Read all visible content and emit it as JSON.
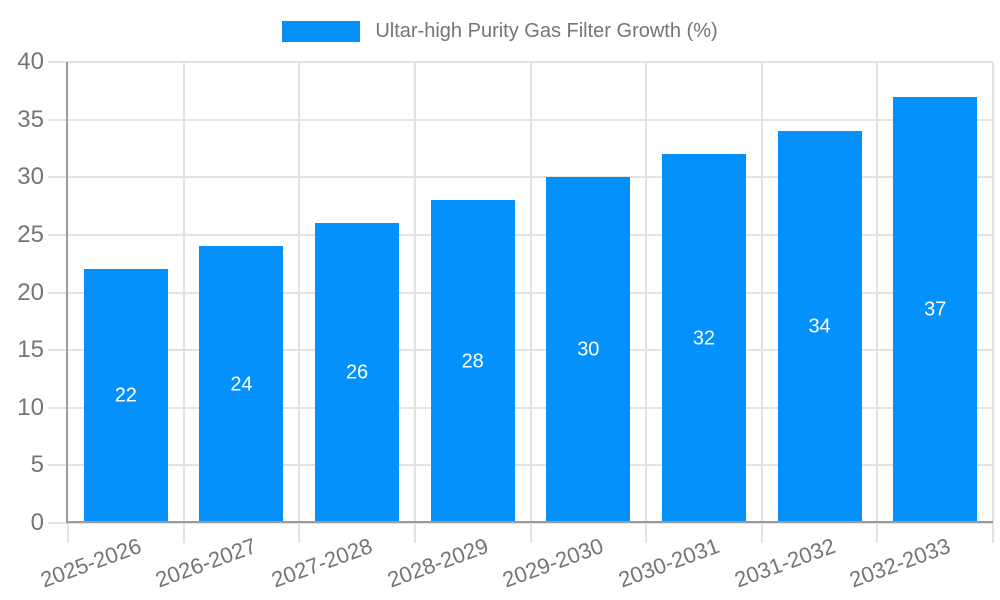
{
  "legend": {
    "label": "Ultar-high Purity Gas Filter Growth (%)",
    "swatch_color": "#0591fb"
  },
  "chart_data": {
    "type": "bar",
    "title": "",
    "series_name": "Ultar-high Purity Gas Filter Growth (%)",
    "categories": [
      "2025-2026",
      "2026-2027",
      "2027-2028",
      "2028-2029",
      "2029-2030",
      "2030-2031",
      "2031-2032",
      "2032-2033"
    ],
    "values": [
      22,
      24,
      26,
      28,
      30,
      32,
      34,
      37
    ],
    "value_labels": [
      "22",
      "24",
      "26",
      "28",
      "30",
      "32",
      "34",
      "37"
    ],
    "value_labels_position": "inside-center",
    "xlabel": "",
    "ylabel": "",
    "ylim": [
      0,
      40
    ],
    "ytick_step": 5,
    "yticks": [
      "0",
      "5",
      "10",
      "15",
      "20",
      "25",
      "30",
      "35",
      "40"
    ],
    "grid": true,
    "legend_position": "top-center"
  },
  "colors": {
    "bar": "#0591fb",
    "grid": "#e3e3e3",
    "axis": "#9b9b9b",
    "tick_label": "#757575",
    "value_label": "#ffffff",
    "background": "#ffffff"
  }
}
